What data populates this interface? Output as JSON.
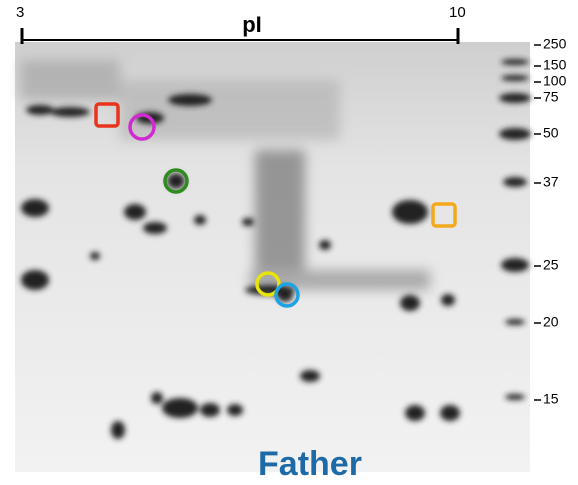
{
  "header": {
    "axis_label": "pI",
    "axis_ticks": [
      "3",
      "10"
    ]
  },
  "mw_markers": [
    "250",
    "150",
    "100",
    "75",
    "50",
    "37",
    "25",
    "20",
    "15"
  ],
  "caption": "Father"
}
